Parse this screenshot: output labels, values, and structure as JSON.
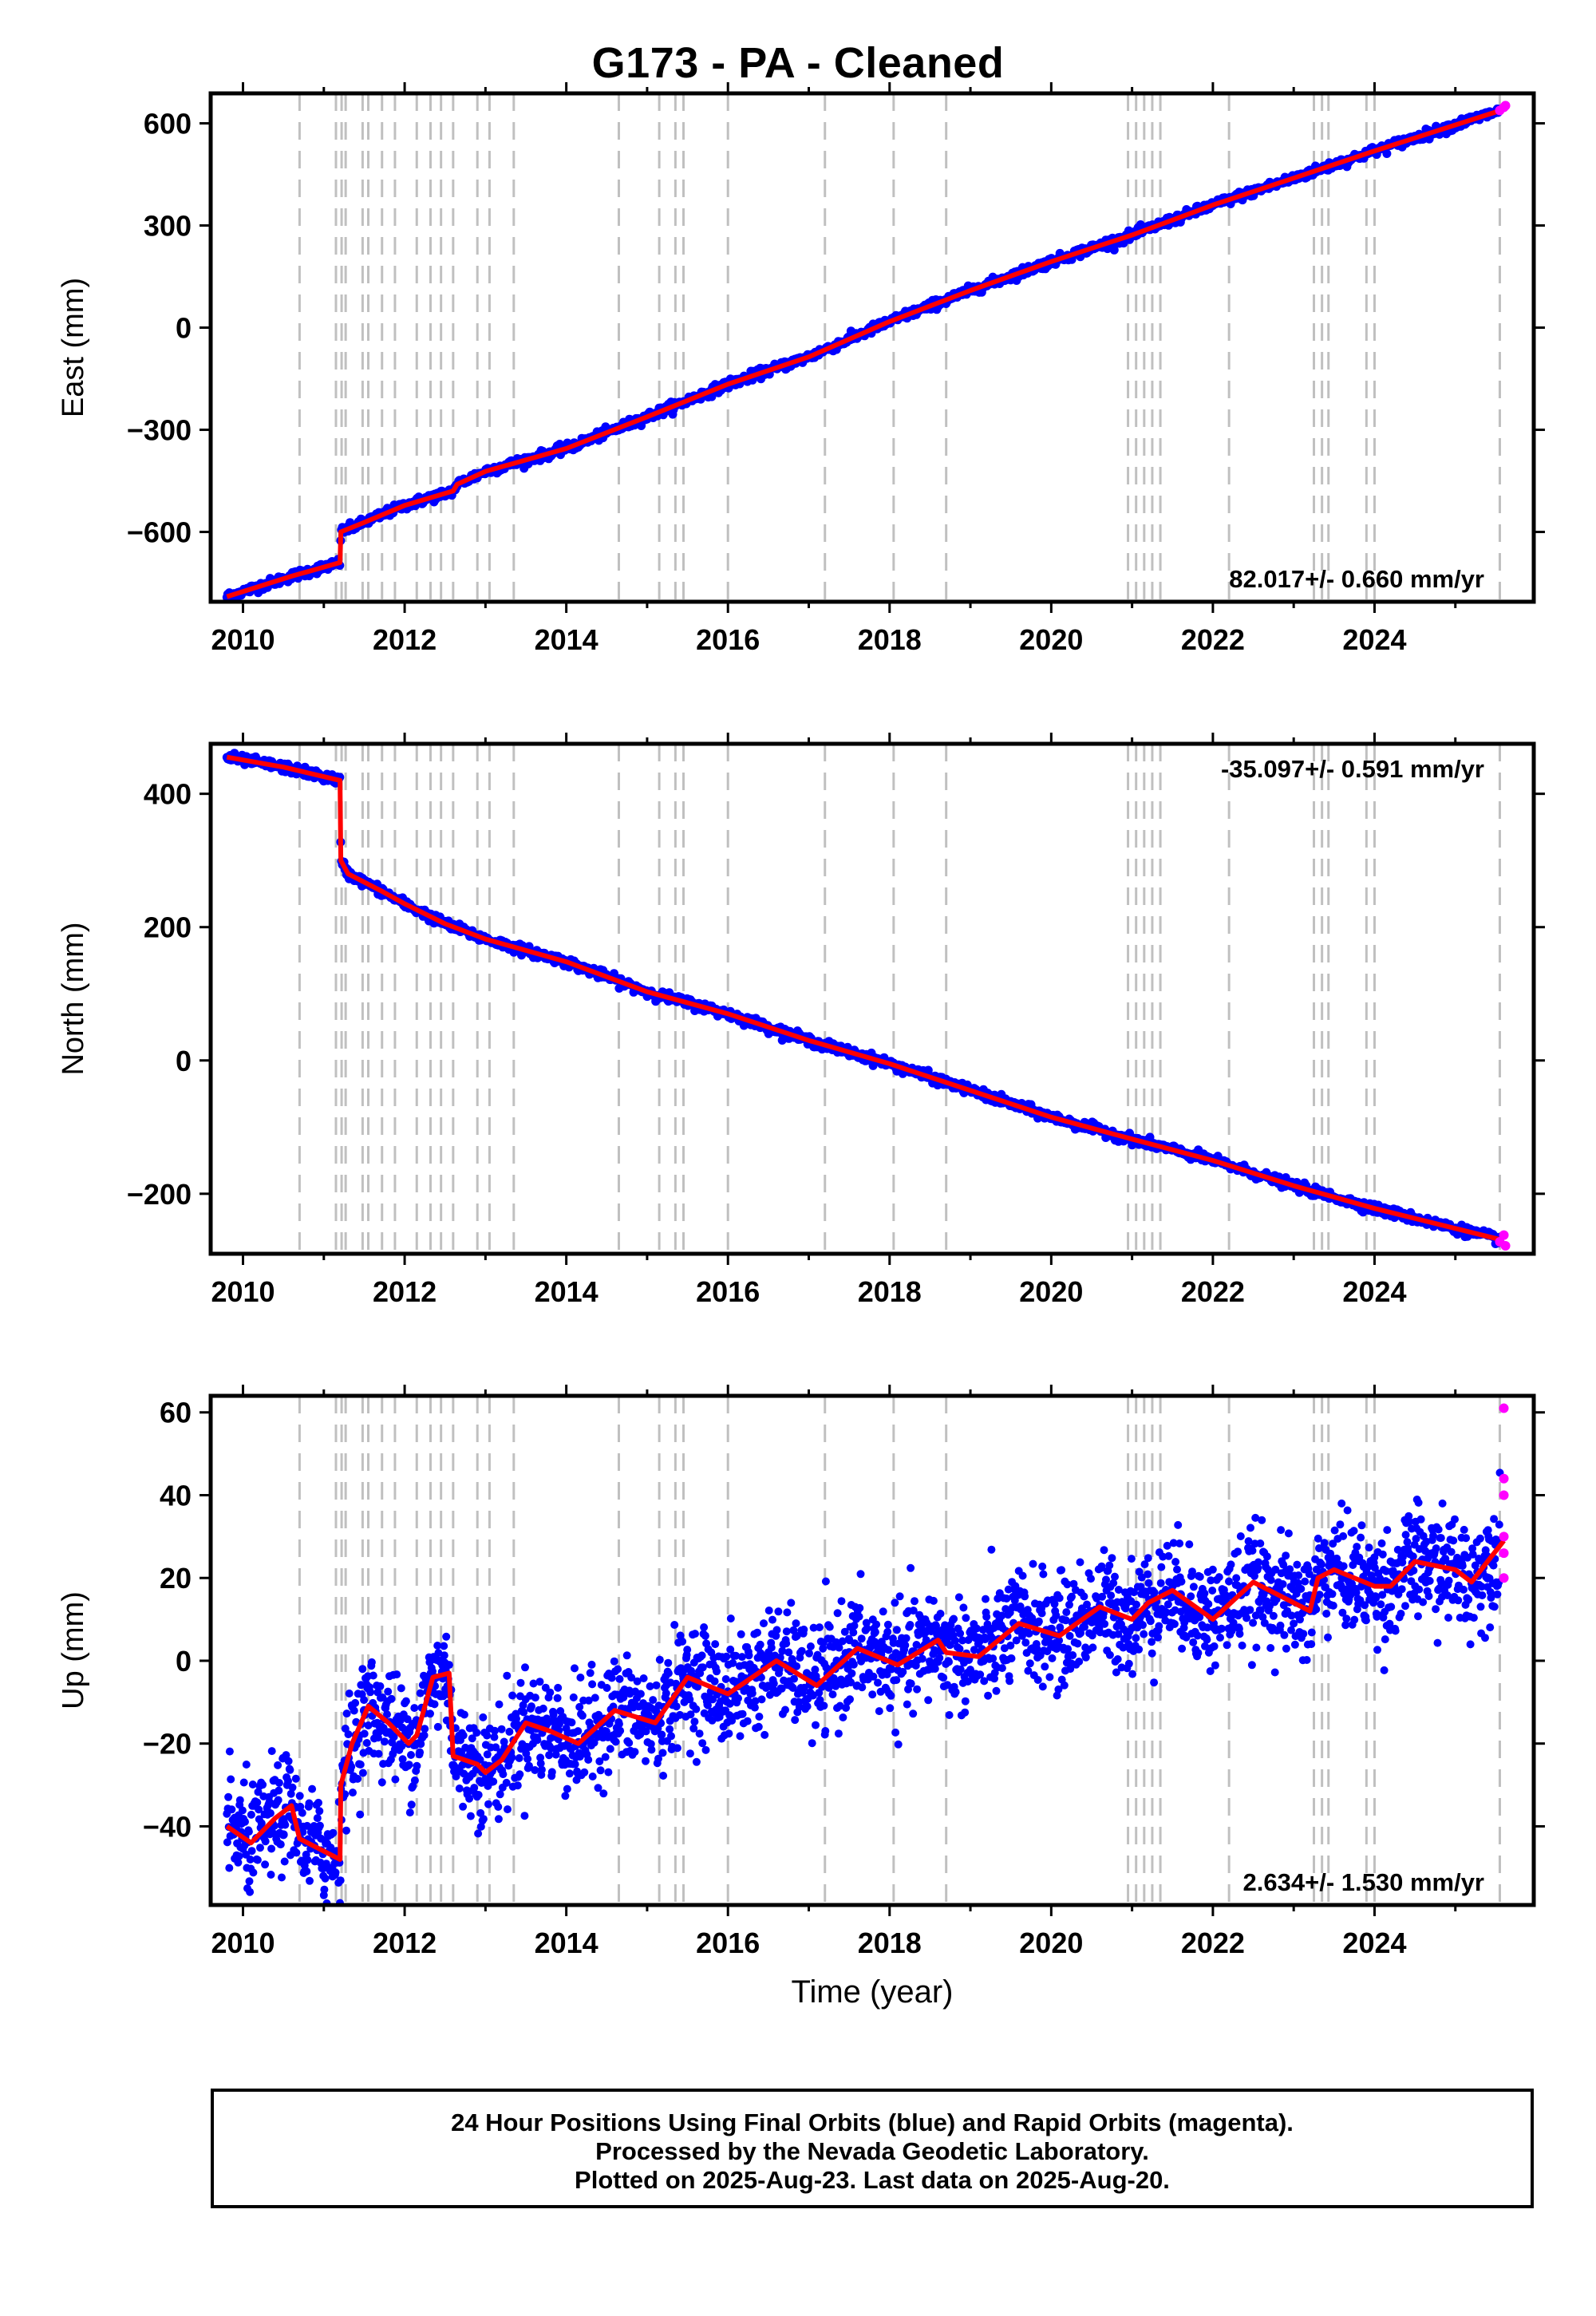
{
  "title": "G173  - PA - Cleaned",
  "footer": {
    "line1": "24 Hour Positions Using Final Orbits (blue) and Rapid Orbits (magenta).",
    "line2": "Processed by the Nevada Geodetic Laboratory.",
    "line3": "Plotted on 2025-Aug-23. Last data on 2025-Aug-20."
  },
  "colors": {
    "final": "#0000ff",
    "rapid": "#ff00ff",
    "model": "#ff0000",
    "steps": "#c0c0c0"
  },
  "chart_data": [
    {
      "type": "scatter",
      "component": "East",
      "ylabel": "East (mm)",
      "xlabel": "",
      "xlim": [
        2009.6,
        2025.97
      ],
      "ylim": [
        -805,
        688
      ],
      "xticks": [
        2010,
        2012,
        2014,
        2016,
        2018,
        2020,
        2022,
        2024
      ],
      "yticks": [
        -600,
        -300,
        0,
        300,
        600
      ],
      "ytick_labels": [
        "−600",
        "−300",
        "0",
        "300",
        "600"
      ],
      "rate": "82.017+/- 0.660 mm/yr",
      "rate_position": "bottom-right",
      "model_line": [
        [
          2009.8,
          -790
        ],
        [
          2010.6,
          -730
        ],
        [
          2011.2,
          -690
        ],
        [
          2011.21,
          -600
        ],
        [
          2011.5,
          -572
        ],
        [
          2012.0,
          -522
        ],
        [
          2012.6,
          -480
        ],
        [
          2012.65,
          -460
        ],
        [
          2013.0,
          -422
        ],
        [
          2014.0,
          -355
        ],
        [
          2015.0,
          -262
        ],
        [
          2016.0,
          -166
        ],
        [
          2017.0,
          -86
        ],
        [
          2018.0,
          18
        ],
        [
          2019.0,
          109
        ],
        [
          2020.0,
          194
        ],
        [
          2021.0,
          272
        ],
        [
          2022.0,
          360
        ],
        [
          2023.0,
          439
        ],
        [
          2024.0,
          519
        ],
        [
          2025.6,
          641
        ]
      ],
      "series": [
        {
          "name": "Final Orbits",
          "sampled_points": [
            [
              2009.9,
              -785
            ],
            [
              2010.5,
              -740
            ],
            [
              2011.1,
              -700
            ],
            [
              2011.4,
              -585
            ],
            [
              2012.3,
              -500
            ],
            [
              2013.5,
              -390
            ],
            [
              2014.7,
              -295
            ],
            [
              2015.8,
              -180
            ],
            [
              2017.0,
              -86
            ],
            [
              2018.3,
              38
            ],
            [
              2019.5,
              152
            ],
            [
              2020.8,
              258
            ],
            [
              2021.9,
              351
            ],
            [
              2023.2,
              455
            ],
            [
              2024.4,
              548
            ],
            [
              2025.5,
              635
            ]
          ]
        },
        {
          "name": "Rapid Orbits",
          "sampled_points": [
            [
              2025.55,
              638
            ],
            [
              2025.6,
              647
            ],
            [
              2025.62,
              652
            ]
          ]
        }
      ]
    },
    {
      "type": "scatter",
      "component": "North",
      "ylabel": "North (mm)",
      "xlabel": "",
      "xlim": [
        2009.6,
        2025.97
      ],
      "ylim": [
        -290,
        475
      ],
      "xticks": [
        2010,
        2012,
        2014,
        2016,
        2018,
        2020,
        2022,
        2024
      ],
      "yticks": [
        -200,
        0,
        200,
        400
      ],
      "ytick_labels": [
        "−200",
        "0",
        "200",
        "400"
      ],
      "rate": "-35.097+/- 0.591 mm/yr",
      "rate_position": "top-right",
      "model_line": [
        [
          2009.8,
          455
        ],
        [
          2010.5,
          440
        ],
        [
          2011.2,
          420
        ],
        [
          2011.21,
          300
        ],
        [
          2011.3,
          280
        ],
        [
          2011.7,
          255
        ],
        [
          2012.0,
          235
        ],
        [
          2012.5,
          205
        ],
        [
          2013.0,
          182
        ],
        [
          2014.0,
          148
        ],
        [
          2015.0,
          103
        ],
        [
          2016.0,
          70
        ],
        [
          2017.0,
          30
        ],
        [
          2018.0,
          -5
        ],
        [
          2019.0,
          -45
        ],
        [
          2020.0,
          -85
        ],
        [
          2021.0,
          -118
        ],
        [
          2022.0,
          -150
        ],
        [
          2023.0,
          -188
        ],
        [
          2024.0,
          -222
        ],
        [
          2025.6,
          -270
        ]
      ],
      "series": [
        {
          "name": "Final Orbits",
          "sampled_points": [
            [
              2009.9,
              455
            ],
            [
              2010.6,
              438
            ],
            [
              2011.1,
              422
            ],
            [
              2011.3,
              285
            ],
            [
              2012.2,
              225
            ],
            [
              2013.4,
              172
            ],
            [
              2014.6,
              125
            ],
            [
              2015.7,
              80
            ],
            [
              2017.0,
              30
            ],
            [
              2018.4,
              -20
            ],
            [
              2019.6,
              -70
            ],
            [
              2020.9,
              -115
            ],
            [
              2022.3,
              -162
            ],
            [
              2023.5,
              -205
            ],
            [
              2024.6,
              -240
            ],
            [
              2025.5,
              -268
            ]
          ]
        },
        {
          "name": "Rapid Orbits",
          "sampled_points": [
            [
              2025.55,
              -272
            ],
            [
              2025.6,
              -262
            ],
            [
              2025.62,
              -278
            ]
          ]
        }
      ]
    },
    {
      "type": "scatter",
      "component": "Up",
      "ylabel": "Up (mm)",
      "xlabel": "Time (year)",
      "xlim": [
        2009.6,
        2025.97
      ],
      "ylim": [
        -59,
        64
      ],
      "xticks": [
        2010,
        2012,
        2014,
        2016,
        2018,
        2020,
        2022,
        2024
      ],
      "yticks": [
        -40,
        -20,
        0,
        20,
        40,
        60
      ],
      "ytick_labels": [
        "−40",
        "−20",
        "0",
        "20",
        "40",
        "60"
      ],
      "rate": "2.634+/- 1.530 mm/yr",
      "rate_position": "bottom-right",
      "model_line": [
        [
          2009.8,
          -40
        ],
        [
          2010.1,
          -44
        ],
        [
          2010.4,
          -38
        ],
        [
          2010.6,
          -35
        ],
        [
          2010.7,
          -43
        ],
        [
          2011.2,
          -48
        ],
        [
          2011.21,
          -30
        ],
        [
          2011.35,
          -20
        ],
        [
          2011.55,
          -11
        ],
        [
          2011.8,
          -15
        ],
        [
          2012.05,
          -20
        ],
        [
          2012.15,
          -18
        ],
        [
          2012.35,
          -4
        ],
        [
          2012.55,
          -3
        ],
        [
          2012.6,
          -23
        ],
        [
          2012.9,
          -25
        ],
        [
          2013.0,
          -27
        ],
        [
          2013.2,
          -24
        ],
        [
          2013.5,
          -15
        ],
        [
          2013.8,
          -17
        ],
        [
          2014.15,
          -20
        ],
        [
          2014.6,
          -12
        ],
        [
          2015.1,
          -15
        ],
        [
          2015.5,
          -4
        ],
        [
          2016.0,
          -8
        ],
        [
          2016.6,
          0
        ],
        [
          2017.1,
          -6
        ],
        [
          2017.6,
          3
        ],
        [
          2018.1,
          -1
        ],
        [
          2018.6,
          5
        ],
        [
          2018.7,
          2
        ],
        [
          2019.1,
          1
        ],
        [
          2019.6,
          9
        ],
        [
          2020.1,
          6
        ],
        [
          2020.6,
          13
        ],
        [
          2021.0,
          10
        ],
        [
          2021.2,
          14
        ],
        [
          2021.5,
          17
        ],
        [
          2022.0,
          10
        ],
        [
          2022.5,
          19
        ],
        [
          2023.0,
          14
        ],
        [
          2023.2,
          12
        ],
        [
          2023.3,
          20
        ],
        [
          2023.5,
          22
        ],
        [
          2024.0,
          18
        ],
        [
          2024.2,
          18
        ],
        [
          2024.5,
          24
        ],
        [
          2025.0,
          22
        ],
        [
          2025.2,
          19
        ],
        [
          2025.6,
          29
        ]
      ],
      "series": [
        {
          "name": "Final Orbits",
          "sampled_points": [
            [
              2009.9,
              -38
            ],
            [
              2010.5,
              -42
            ],
            [
              2011.0,
              -50
            ],
            [
              2011.5,
              -12
            ],
            [
              2012.0,
              -18
            ],
            [
              2012.5,
              -2
            ],
            [
              2012.8,
              -28
            ],
            [
              2013.5,
              -15
            ],
            [
              2014.3,
              -18
            ],
            [
              2015.0,
              -14
            ],
            [
              2015.6,
              -4
            ],
            [
              2016.6,
              0
            ],
            [
              2017.5,
              2
            ],
            [
              2018.5,
              4
            ],
            [
              2019.6,
              8
            ],
            [
              2020.6,
              12
            ],
            [
              2021.6,
              16
            ],
            [
              2022.6,
              18
            ],
            [
              2023.6,
              20
            ],
            [
              2024.6,
              24
            ],
            [
              2025.4,
              20
            ]
          ]
        },
        {
          "name": "Rapid Orbits",
          "sampled_points": [
            [
              2025.6,
              61
            ],
            [
              2025.6,
              44
            ],
            [
              2025.6,
              40
            ],
            [
              2025.6,
              30
            ],
            [
              2025.6,
              26
            ],
            [
              2025.6,
              20
            ]
          ]
        }
      ]
    }
  ],
  "step_epochs": [
    2010.7,
    2011.15,
    2011.22,
    2011.27,
    2011.48,
    2011.55,
    2011.72,
    2011.88,
    2012.15,
    2012.32,
    2012.45,
    2012.6,
    2012.9,
    2013.05,
    2013.35,
    2014.65,
    2015.15,
    2015.35,
    2015.45,
    2016.0,
    2017.2,
    2018.05,
    2018.7,
    2020.95,
    2021.05,
    2021.15,
    2021.25,
    2021.35,
    2022.2,
    2023.25,
    2023.35,
    2023.43,
    2023.9,
    2024.0,
    2025.55
  ]
}
